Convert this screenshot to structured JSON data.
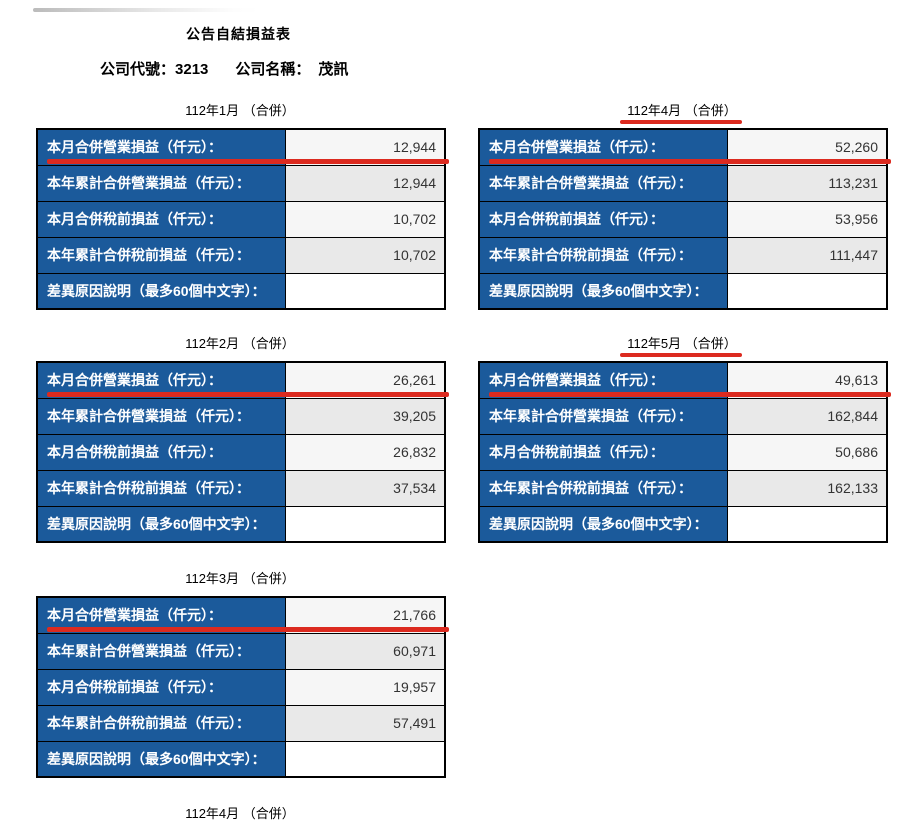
{
  "header": {
    "title": "公告自結損益表",
    "company_code_label": "公司代號：",
    "company_code": "3213",
    "company_name_label": "公司名稱：",
    "company_name": "茂訊"
  },
  "row_labels": [
    "本月合併營業損益（仟元）：",
    "本年累計合併營業損益（仟元）：",
    "本月合併稅前損益（仟元）：",
    "本年累計合併稅前損益（仟元）：",
    "差異原因說明（最多60個中文字）："
  ],
  "tables": [
    {
      "month_title": "112年1月 （合併）",
      "header_underlined": false,
      "first_row_underlined": true,
      "values": [
        "12,944",
        "12,944",
        "10,702",
        "10,702",
        ""
      ]
    },
    {
      "month_title": "112年2月 （合併）",
      "header_underlined": false,
      "first_row_underlined": true,
      "values": [
        "26,261",
        "39,205",
        "26,832",
        "37,534",
        ""
      ]
    },
    {
      "month_title": "112年3月 （合併）",
      "header_underlined": false,
      "first_row_underlined": true,
      "values": [
        "21,766",
        "60,971",
        "19,957",
        "57,491",
        ""
      ]
    },
    {
      "month_title": "112年4月 （合併）",
      "header_underlined": true,
      "first_row_underlined": true,
      "values": [
        "52,260",
        "113,231",
        "53,956",
        "111,447",
        ""
      ]
    },
    {
      "month_title": "112年5月 （合併）",
      "header_underlined": true,
      "first_row_underlined": true,
      "values": [
        "49,613",
        "162,844",
        "50,686",
        "162,133",
        ""
      ]
    }
  ],
  "partial_next_table": {
    "month_title": "112年4月 （合併）"
  },
  "colors": {
    "label_bg": "#1b5a9b",
    "annotation_red": "#dc2a1f",
    "value_bg_light": "#f6f6f6",
    "value_bg_mid": "#e9e9e9",
    "value_bg_last": "#ffffff",
    "border": "#000000"
  }
}
